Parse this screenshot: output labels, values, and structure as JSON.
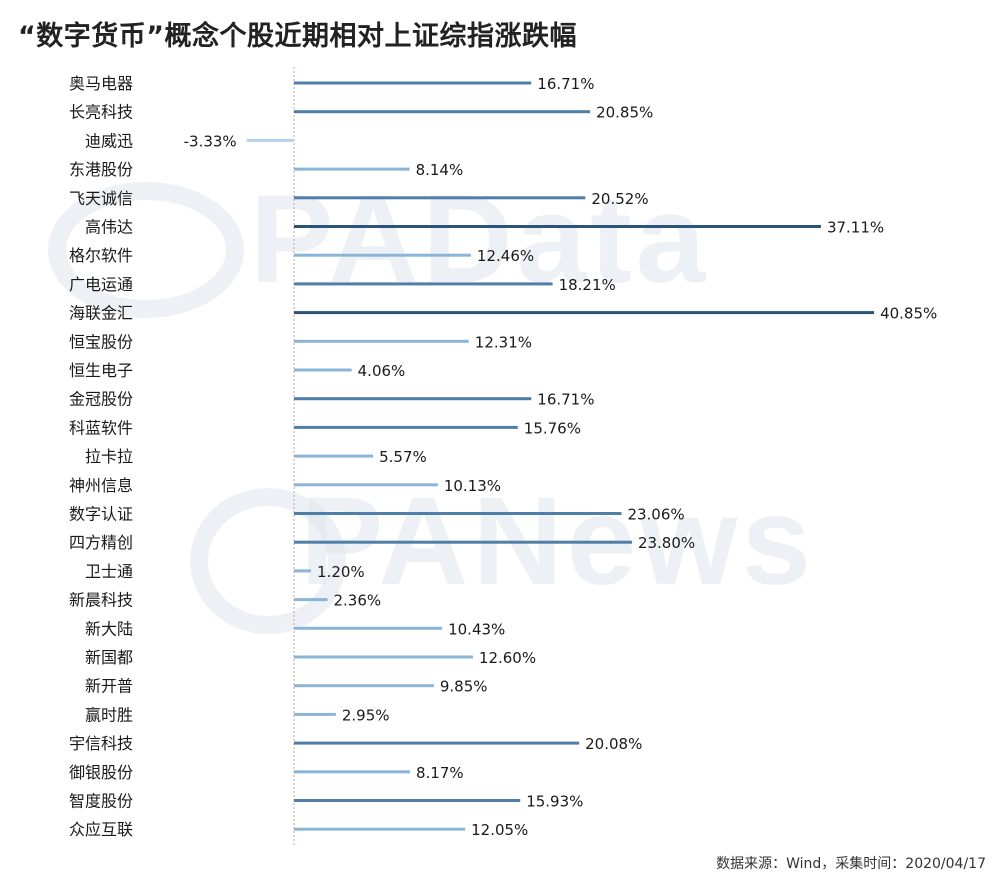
{
  "title": "“数字货币”概念个股近期相对上证综指涨跌幅",
  "watermarks": [
    "PAData",
    "PANews"
  ],
  "footer": "数据来源：Wind，采集时间：2020/04/17",
  "colors": {
    "dark": "#2c5378",
    "mid": "#4f7ea8",
    "light": "#8bb5d6",
    "lightest": "#b6d3ea",
    "axis": "#c7a0a0",
    "label": "#1a1a1a"
  },
  "chart_data": {
    "type": "bar",
    "orientation": "horizontal",
    "title": "“数字货币”概念个股近期相对上证综指涨跌幅",
    "categories": [
      "奥马电器",
      "长亮科技",
      "迪威迅",
      "东港股份",
      "飞天诚信",
      "高伟达",
      "格尔软件",
      "广电运通",
      "海联金汇",
      "恒宝股份",
      "恒生电子",
      "金冠股份",
      "科蓝软件",
      "拉卡拉",
      "神州信息",
      "数字认证",
      "四方精创",
      "卫士通",
      "新晨科技",
      "新大陆",
      "新国都",
      "新开普",
      "赢时胜",
      "宇信科技",
      "御银股份",
      "智度股份",
      "众应互联"
    ],
    "values": [
      16.71,
      20.85,
      -3.33,
      8.14,
      20.52,
      37.11,
      12.46,
      18.21,
      40.85,
      12.31,
      4.06,
      16.71,
      15.76,
      5.57,
      10.13,
      23.06,
      23.8,
      1.2,
      2.36,
      10.43,
      12.6,
      9.85,
      2.95,
      20.08,
      8.17,
      15.93,
      12.05
    ],
    "value_labels": [
      "16.71%",
      "20.85%",
      "-3.33%",
      "8.14%",
      "20.52%",
      "37.11%",
      "12.46%",
      "18.21%",
      "40.85%",
      "12.31%",
      "4.06%",
      "16.71%",
      "15.76%",
      "5.57%",
      "10.13%",
      "23.06%",
      "23.80%",
      "1.20%",
      "2.36%",
      "10.43%",
      "12.60%",
      "9.85%",
      "2.95%",
      "20.08%",
      "8.17%",
      "15.93%",
      "12.05%"
    ],
    "unit": "%",
    "xlim": [
      -3.33,
      40.85
    ],
    "grid": false,
    "legend": "none"
  }
}
